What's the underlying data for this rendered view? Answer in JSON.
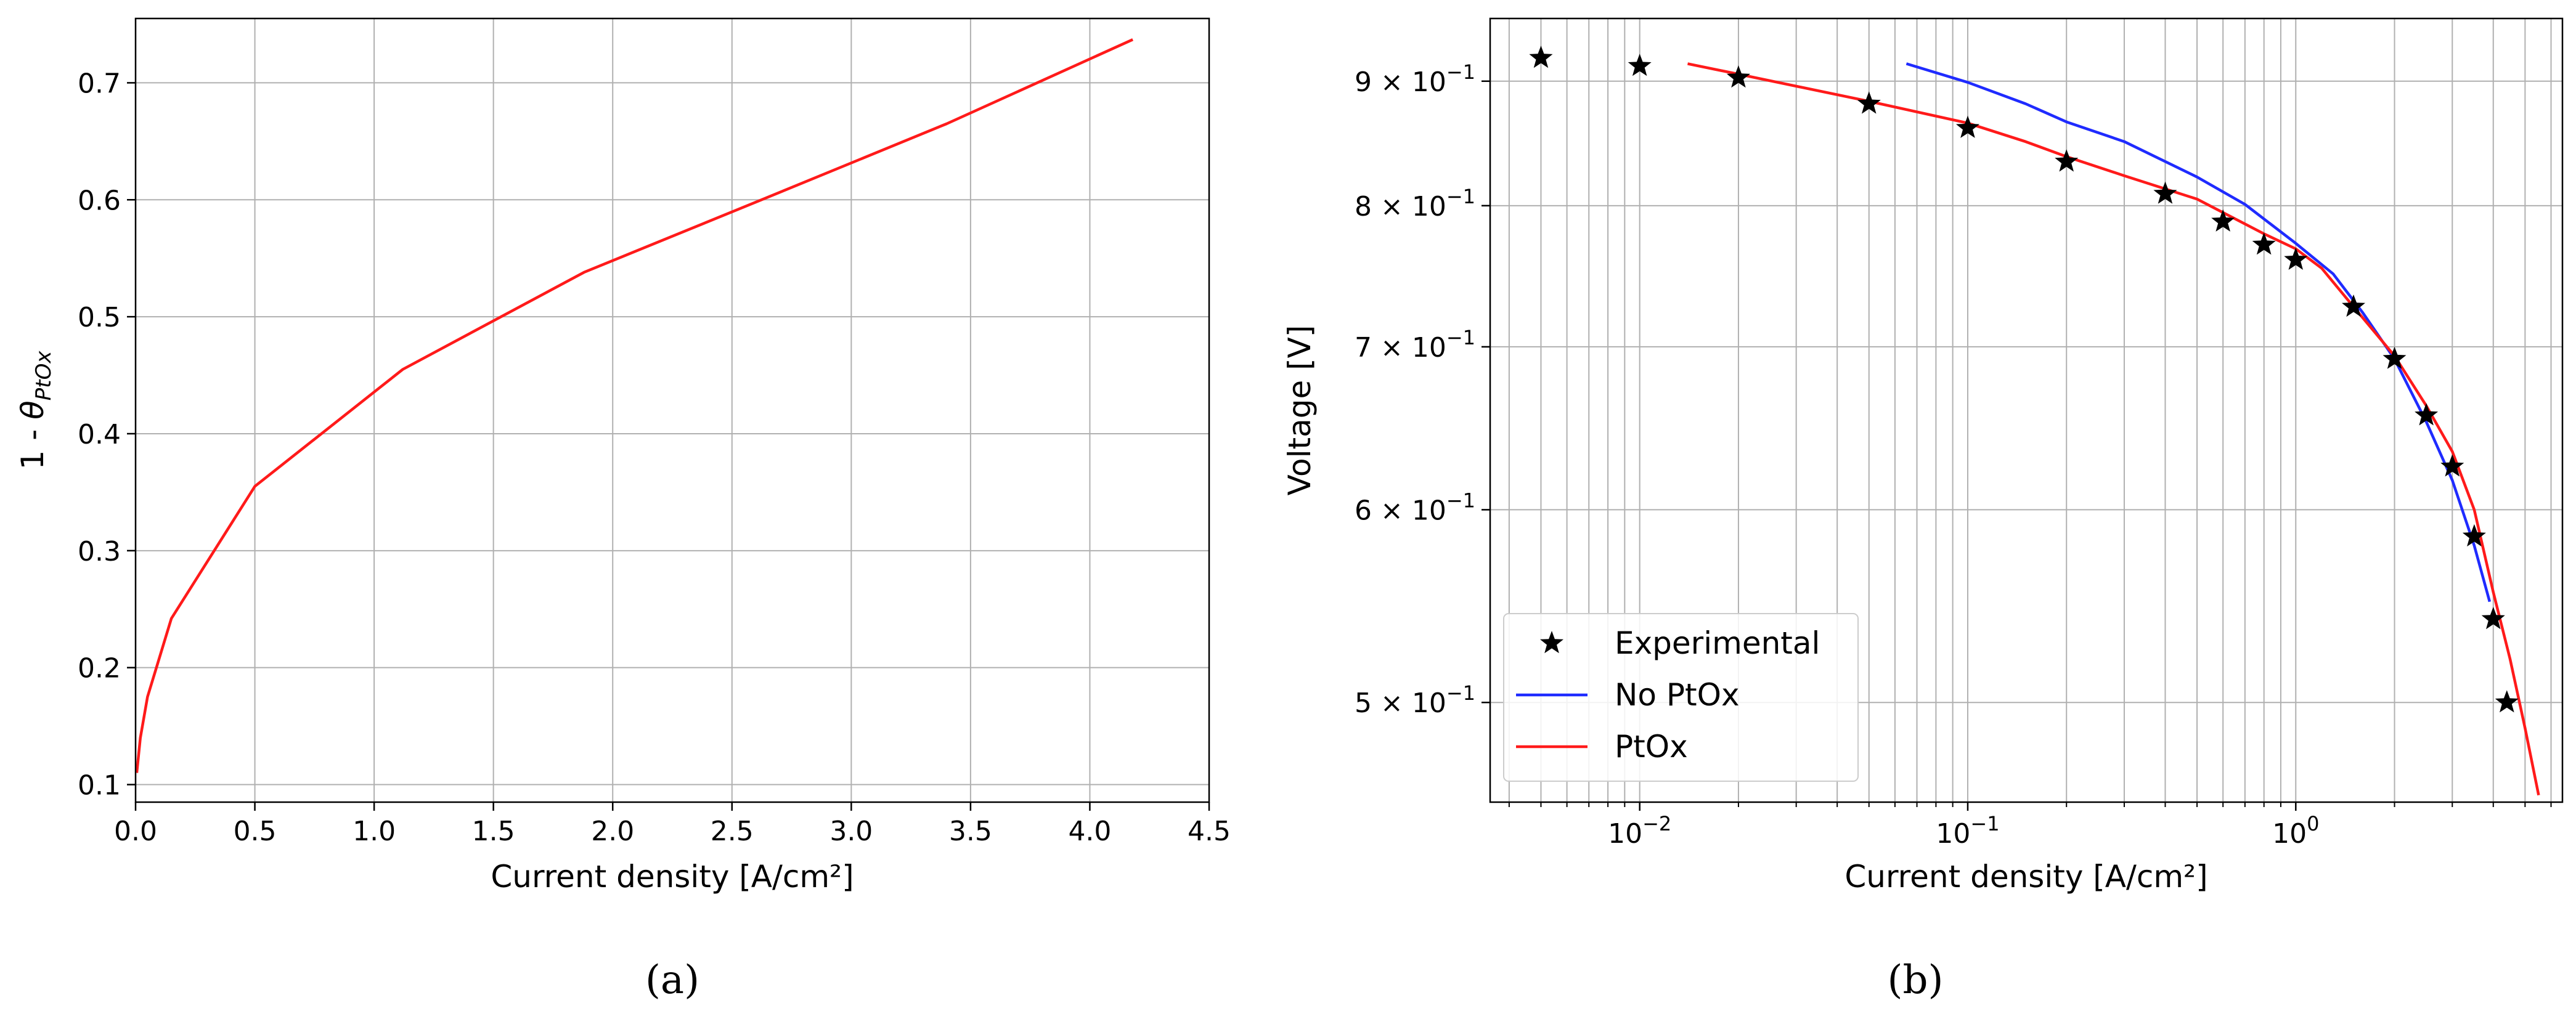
{
  "colors": {
    "red": "#ff1a1a",
    "blue": "#1f2bff",
    "grid": "#b0b0b0",
    "black": "#000000"
  },
  "chart_data": [
    {
      "type": "line",
      "panel_label": "a",
      "xlabel": "Current density  [A/cm²]",
      "ylabel": "1 - θPtOx",
      "ylabel_parts": {
        "prefix": "1 - ",
        "symbol": "θ",
        "subscript": "PtOx"
      },
      "xlim": [
        0.0,
        4.5
      ],
      "ylim": [
        0.085,
        0.755
      ],
      "xticks": [
        0.0,
        0.5,
        1.0,
        1.5,
        2.0,
        2.5,
        3.0,
        3.5,
        4.0,
        4.5
      ],
      "xtick_labels": [
        "0.0",
        "0.5",
        "1.0",
        "1.5",
        "2.0",
        "2.5",
        "3.0",
        "3.5",
        "4.0",
        "4.5"
      ],
      "yticks": [
        0.1,
        0.2,
        0.3,
        0.4,
        0.5,
        0.6,
        0.7
      ],
      "ytick_labels": [
        "0.1",
        "0.2",
        "0.3",
        "0.4",
        "0.5",
        "0.6",
        "0.7"
      ],
      "grid": true,
      "series": [
        {
          "color": "#ff1a1a",
          "x": [
            0.005,
            0.02,
            0.05,
            0.15,
            0.5,
            1.12,
            1.88,
            2.6,
            3.4,
            4.18
          ],
          "y": [
            0.11,
            0.14,
            0.175,
            0.242,
            0.355,
            0.455,
            0.538,
            0.598,
            0.665,
            0.737
          ]
        }
      ]
    },
    {
      "type": "line",
      "panel_label": "b",
      "xlabel": "Current density  [A/cm²]",
      "ylabel": "Voltage [V]",
      "xscale": "log",
      "yscale": "log",
      "xlim": [
        0.0035,
        6.5
      ],
      "ylim": [
        0.455,
        0.955
      ],
      "xticks": [
        0.01,
        0.1,
        1
      ],
      "xtick_labels": [
        {
          "base": "10",
          "exp": "−2"
        },
        {
          "base": "10",
          "exp": "−1"
        },
        {
          "base": "10",
          "exp": "0"
        }
      ],
      "yticks": [
        0.5,
        0.6,
        0.7,
        0.8,
        0.9
      ],
      "ytick_labels": [
        {
          "mant": "5",
          "times": "×",
          "base": "10",
          "exp": "−1"
        },
        {
          "mant": "6",
          "times": "×",
          "base": "10",
          "exp": "−1"
        },
        {
          "mant": "7",
          "times": "×",
          "base": "10",
          "exp": "−1"
        },
        {
          "mant": "8",
          "times": "×",
          "base": "10",
          "exp": "−1"
        },
        {
          "mant": "9",
          "times": "×",
          "base": "10",
          "exp": "−1"
        }
      ],
      "grid": true,
      "legend_position": "lower-left",
      "series": [
        {
          "name": "Experimental",
          "marker": "star",
          "color": "#000000",
          "x": [
            0.005,
            0.01,
            0.02,
            0.05,
            0.1,
            0.2,
            0.4,
            0.6,
            0.8,
            1.0,
            1.5,
            2.0,
            2.5,
            3.0,
            3.5,
            4.0,
            4.4
          ],
          "y": [
            0.92,
            0.913,
            0.903,
            0.881,
            0.861,
            0.834,
            0.809,
            0.788,
            0.771,
            0.76,
            0.727,
            0.692,
            0.656,
            0.625,
            0.585,
            0.541,
            0.5
          ]
        },
        {
          "name": "No PtOx",
          "color": "#1f2bff",
          "x": [
            0.065,
            0.1,
            0.15,
            0.2,
            0.3,
            0.5,
            0.7,
            1.0,
            1.3,
            1.6,
            2.0,
            2.5,
            3.0,
            3.5,
            3.9
          ],
          "y": [
            0.915,
            0.899,
            0.881,
            0.866,
            0.85,
            0.822,
            0.801,
            0.772,
            0.75,
            0.723,
            0.692,
            0.652,
            0.617,
            0.58,
            0.55
          ]
        },
        {
          "name": "PtOx",
          "color": "#ff1a1a",
          "x": [
            0.014,
            0.02,
            0.05,
            0.1,
            0.15,
            0.2,
            0.3,
            0.5,
            0.8,
            1.0,
            1.2,
            1.5,
            2.0,
            2.5,
            3.0,
            3.5,
            4.0,
            4.5,
            5.0,
            5.5
          ],
          "y": [
            0.915,
            0.906,
            0.883,
            0.865,
            0.85,
            0.838,
            0.823,
            0.805,
            0.779,
            0.768,
            0.754,
            0.727,
            0.694,
            0.662,
            0.634,
            0.6,
            0.555,
            0.521,
            0.488,
            0.458
          ]
        }
      ]
    }
  ]
}
